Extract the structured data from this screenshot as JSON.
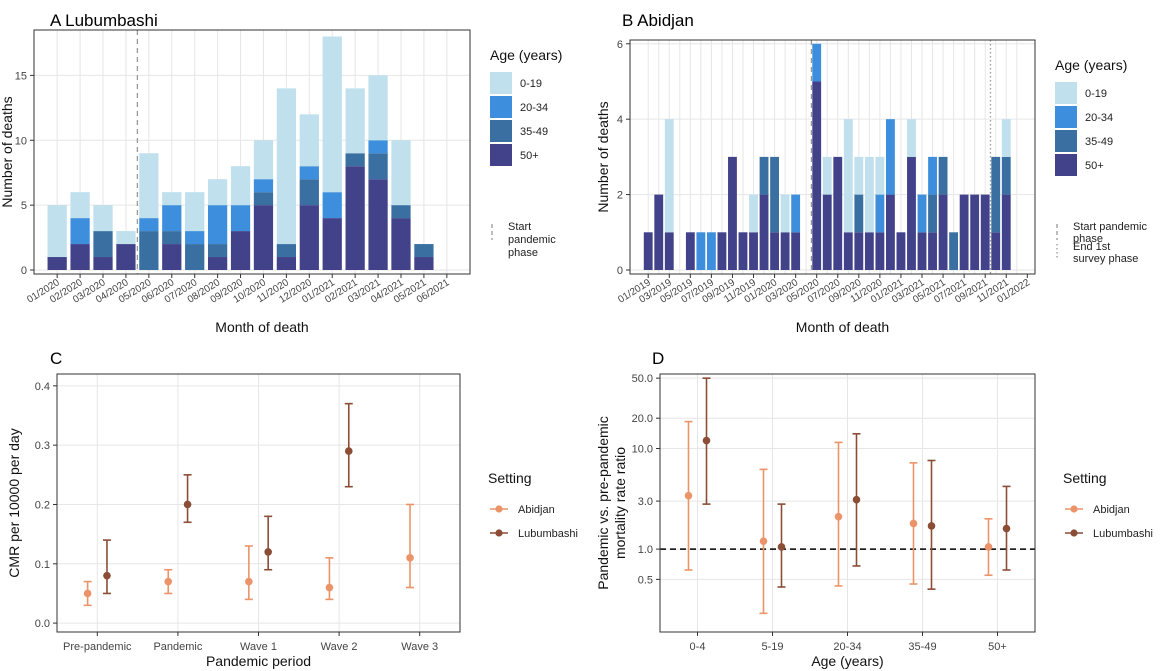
{
  "colors": {
    "age_0_19": "#bfe0ec",
    "age_20_34": "#3d8fdd",
    "age_35_49": "#3a6fa2",
    "age_50_plus": "#42428a",
    "abidjan": "#ec9469",
    "lubumbashi": "#8c4d37",
    "axis": "#333333",
    "grid": "#e6e6e6"
  },
  "chart_data": [
    {
      "panel": "A",
      "title": "A Lubumbashi",
      "type": "bar",
      "stacked": true,
      "xlabel": "Month of death",
      "ylabel": "Number of deaths",
      "ylim": [
        0,
        18.5
      ],
      "yticks": [
        0,
        5,
        10,
        15
      ],
      "categories": [
        "01/2020",
        "02/2020",
        "03/2020",
        "04/2020",
        "05/2020",
        "06/2020",
        "07/2020",
        "08/2020",
        "09/2020",
        "10/2020",
        "11/2020",
        "12/2020",
        "01/2021",
        "02/2021",
        "03/2021",
        "04/2021",
        "05/2021",
        "06/2021"
      ],
      "series": [
        {
          "name": "50+",
          "values": [
            1,
            2,
            1,
            2,
            0,
            2,
            0,
            1,
            3,
            5,
            1,
            5,
            4,
            8,
            7,
            4,
            1,
            0
          ]
        },
        {
          "name": "35-49",
          "values": [
            0,
            0,
            2,
            0,
            3,
            1,
            2,
            1,
            0,
            1,
            1,
            2,
            0,
            1,
            2,
            1,
            1,
            0
          ]
        },
        {
          "name": "20-34",
          "values": [
            0,
            2,
            0,
            0,
            1,
            2,
            1,
            3,
            2,
            1,
            0,
            1,
            2,
            0,
            1,
            0,
            0,
            0
          ]
        },
        {
          "name": "0-19",
          "values": [
            4,
            2,
            2,
            1,
            5,
            1,
            3,
            2,
            3,
            3,
            12,
            4,
            12,
            5,
            5,
            5,
            0,
            0
          ]
        }
      ],
      "vline_at": "05/2020",
      "legend_title": "Age (years)",
      "legend_entries": [
        "0-19",
        "20-34",
        "35-49",
        "50+"
      ],
      "line_legend": [
        {
          "label": "Start pandemic phase",
          "style": "dashed"
        }
      ],
      "grid": true
    },
    {
      "panel": "B",
      "title": "B Abidjan",
      "type": "bar",
      "stacked": true,
      "xlabel": "Month of death",
      "ylabel": "Number of deaths",
      "ylim": [
        0,
        6.1
      ],
      "yticks": [
        0,
        2,
        4,
        6
      ],
      "xtick_labels": [
        "01/2019",
        "03/2019",
        "05/2019",
        "07/2019",
        "09/2019",
        "11/2019",
        "01/2020",
        "03/2020",
        "05/2020",
        "07/2020",
        "09/2020",
        "11/2020",
        "01/2021",
        "03/2021",
        "05/2021",
        "07/2021",
        "09/2021",
        "11/2021",
        "01/2022"
      ],
      "categories": [
        "01/2019",
        "02/2019",
        "03/2019",
        "04/2019",
        "05/2019",
        "06/2019",
        "07/2019",
        "08/2019",
        "09/2019",
        "10/2019",
        "11/2019",
        "12/2019",
        "01/2020",
        "02/2020",
        "03/2020",
        "04/2020",
        "05/2020",
        "06/2020",
        "07/2020",
        "08/2020",
        "09/2020",
        "10/2020",
        "11/2020",
        "12/2020",
        "01/2021",
        "02/2021",
        "03/2021",
        "04/2021",
        "05/2021",
        "06/2021",
        "07/2021",
        "08/2021",
        "09/2021",
        "10/2021",
        "11/2021",
        "12/2021"
      ],
      "series": [
        {
          "name": "50+",
          "values": [
            1,
            2,
            1,
            0,
            1,
            0,
            0,
            1,
            3,
            1,
            1,
            2,
            1,
            1,
            1,
            0,
            5,
            2,
            3,
            1,
            1,
            1,
            1,
            2,
            1,
            3,
            1,
            1,
            2,
            0,
            2,
            2,
            2,
            1,
            2,
            0
          ]
        },
        {
          "name": "35-49",
          "values": [
            0,
            0,
            0,
            0,
            0,
            0,
            0,
            0,
            0,
            0,
            0,
            1,
            2,
            0,
            0,
            0,
            0,
            0,
            0,
            0,
            1,
            0,
            0,
            0,
            0,
            0,
            0,
            1,
            1,
            1,
            0,
            0,
            0,
            2,
            1,
            0
          ]
        },
        {
          "name": "20-34",
          "values": [
            0,
            0,
            0,
            0,
            0,
            1,
            1,
            0,
            0,
            0,
            0,
            0,
            0,
            0,
            1,
            0,
            1,
            0,
            0,
            0,
            0,
            0,
            1,
            2,
            0,
            0,
            1,
            1,
            0,
            0,
            0,
            0,
            0,
            0,
            0,
            0
          ]
        },
        {
          "name": "0-19",
          "values": [
            0,
            0,
            3,
            0,
            0,
            0,
            0,
            0,
            0,
            0,
            1,
            0,
            0,
            1,
            0,
            0,
            0,
            1,
            0,
            3,
            1,
            2,
            1,
            0,
            0,
            1,
            0,
            0,
            0,
            0,
            0,
            0,
            0,
            0,
            1,
            0
          ]
        }
      ],
      "vlines": [
        {
          "at": "05/2020",
          "style": "dashed"
        },
        {
          "at": "10/2021",
          "style": "dotted"
        }
      ],
      "legend_title": "Age (years)",
      "legend_entries": [
        "0-19",
        "20-34",
        "35-49",
        "50+"
      ],
      "line_legend": [
        {
          "label": "Start pandemic phase",
          "style": "dashed"
        },
        {
          "label": "End 1st survey phase",
          "style": "dotted"
        }
      ],
      "grid": true
    },
    {
      "panel": "C",
      "title": "C",
      "type": "scatter",
      "errorbars": true,
      "xlabel": "Pandemic period",
      "ylabel": "CMR per 10000 per day",
      "ylim": [
        -0.015,
        0.42
      ],
      "yticks": [
        0.0,
        0.1,
        0.2,
        0.3,
        0.4
      ],
      "ytick_labels": [
        "0.0",
        "0.1",
        "0.2",
        "0.3",
        "0.4"
      ],
      "categories": [
        "Pre-pandemic",
        "Pandemic",
        "Wave 1",
        "Wave 2",
        "Wave 3"
      ],
      "series": [
        {
          "name": "Abidjan",
          "points": [
            {
              "category": "Pre-pandemic",
              "y": 0.05,
              "lo": 0.03,
              "hi": 0.07
            },
            {
              "category": "Pandemic",
              "y": 0.07,
              "lo": 0.05,
              "hi": 0.09
            },
            {
              "category": "Wave 1",
              "y": 0.07,
              "lo": 0.04,
              "hi": 0.13
            },
            {
              "category": "Wave 2",
              "y": 0.06,
              "lo": 0.04,
              "hi": 0.11
            },
            {
              "category": "Wave 3",
              "y": 0.11,
              "lo": 0.06,
              "hi": 0.2
            }
          ]
        },
        {
          "name": "Lubumbashi",
          "points": [
            {
              "category": "Pre-pandemic",
              "y": 0.08,
              "lo": 0.05,
              "hi": 0.14
            },
            {
              "category": "Pandemic",
              "y": 0.2,
              "lo": 0.17,
              "hi": 0.25
            },
            {
              "category": "Wave 1",
              "y": 0.12,
              "lo": 0.09,
              "hi": 0.18
            },
            {
              "category": "Wave 2",
              "y": 0.29,
              "lo": 0.23,
              "hi": 0.37
            }
          ]
        }
      ],
      "legend_title": "Setting",
      "legend_entries": [
        "Abidjan",
        "Lubumbashi"
      ],
      "grid": true
    },
    {
      "panel": "D",
      "title": "D",
      "type": "scatter",
      "errorbars": true,
      "yscale": "log",
      "xlabel": "Age (years)",
      "ylabel": "Pandemic vs. pre-pandemic mortality rate ratio",
      "ylim": [
        0.15,
        55
      ],
      "yticks": [
        0.5,
        1.0,
        3.0,
        10.0,
        20.0,
        50.0
      ],
      "ytick_labels": [
        "0.5",
        "1.0",
        "3.0",
        "10.0",
        "20.0",
        "50.0"
      ],
      "reference_line": 1.0,
      "categories": [
        "0-4",
        "5-19",
        "20-34",
        "35-49",
        "50+"
      ],
      "series": [
        {
          "name": "Abidjan",
          "points": [
            {
              "category": "0-4",
              "y": 3.4,
              "lo": 0.62,
              "hi": 18.5
            },
            {
              "category": "5-19",
              "y": 1.2,
              "lo": 0.23,
              "hi": 6.2
            },
            {
              "category": "20-34",
              "y": 2.1,
              "lo": 0.43,
              "hi": 11.5
            },
            {
              "category": "35-49",
              "y": 1.8,
              "lo": 0.45,
              "hi": 7.2
            },
            {
              "category": "50+",
              "y": 1.05,
              "lo": 0.55,
              "hi": 2.0
            }
          ]
        },
        {
          "name": "Lubumbashi",
          "points": [
            {
              "category": "0-4",
              "y": 12.0,
              "lo": 2.8,
              "hi": 50.0
            },
            {
              "category": "5-19",
              "y": 1.05,
              "lo": 0.42,
              "hi": 2.8
            },
            {
              "category": "20-34",
              "y": 3.1,
              "lo": 0.68,
              "hi": 14.0
            },
            {
              "category": "35-49",
              "y": 1.7,
              "lo": 0.4,
              "hi": 7.6
            },
            {
              "category": "50+",
              "y": 1.6,
              "lo": 0.62,
              "hi": 4.2
            }
          ]
        }
      ],
      "legend_title": "Setting",
      "legend_entries": [
        "Abidjan",
        "Lubumbashi"
      ],
      "grid": true
    }
  ]
}
